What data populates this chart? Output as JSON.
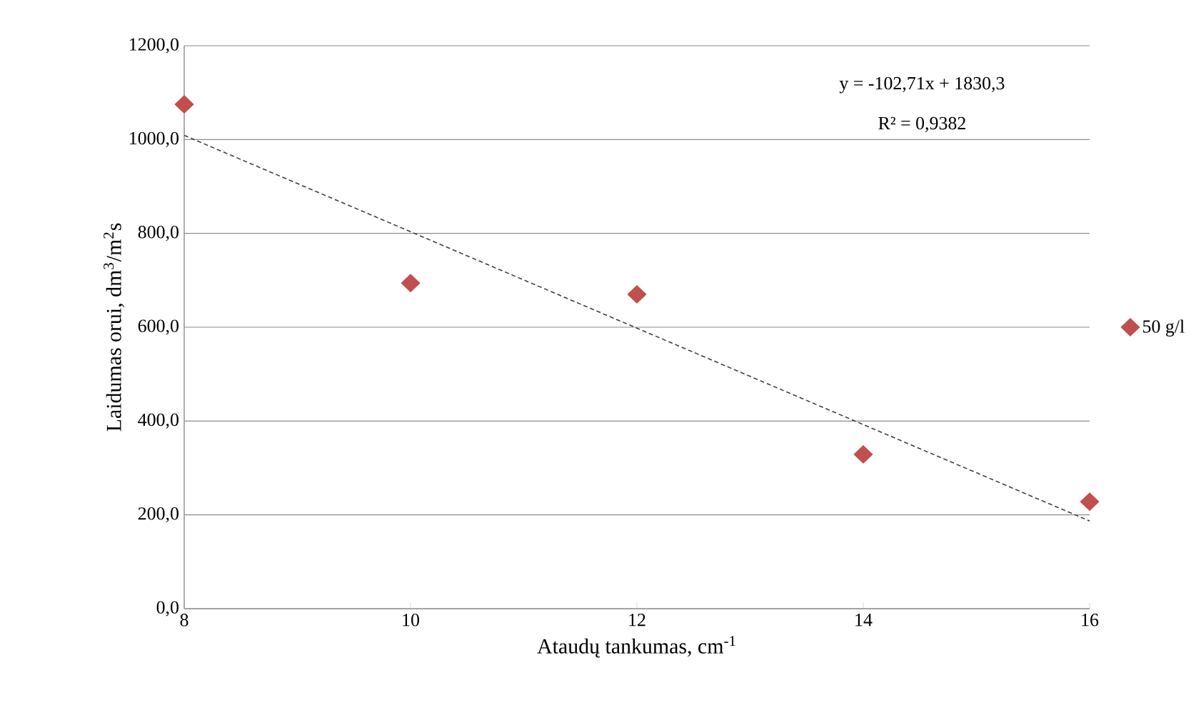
{
  "chart_data": {
    "type": "scatter",
    "xlabel": "Ataudų tankumas, cm$^{-1}$",
    "ylabel": "Laidumas orui, dm$^{3}$/m$^{2}$s",
    "x": [
      8,
      10,
      12,
      14,
      16
    ],
    "series": [
      {
        "name": "50 g/l",
        "color": "#c0504d",
        "marker": "diamond",
        "values": [
          1075,
          694,
          670,
          329,
          228
        ]
      },
      {
        "type": "line",
        "color": "#404040",
        "line_style": "dashed",
        "marker": "none",
        "x": [
          8,
          16
        ],
        "values": [
          1009,
          187
        ]
      }
    ],
    "xlim": [
      8,
      16
    ],
    "xticks": [
      8,
      10,
      12,
      14,
      16
    ],
    "ylim": [
      0,
      1200
    ],
    "yticks": [
      {
        "value": 0,
        "label": "0,0"
      },
      {
        "value": 200,
        "label": "200,0"
      },
      {
        "value": 400,
        "label": "400,0"
      },
      {
        "value": 600,
        "label": "600,0"
      },
      {
        "value": 800,
        "label": "800,0"
      },
      {
        "value": 1000,
        "label": "1000,0"
      },
      {
        "value": 1200,
        "label": "1200,0"
      }
    ],
    "grid": "y",
    "legend": "right",
    "annotations": [
      "y = -102,71x + 1830,3",
      "R² = 0,9382"
    ]
  }
}
